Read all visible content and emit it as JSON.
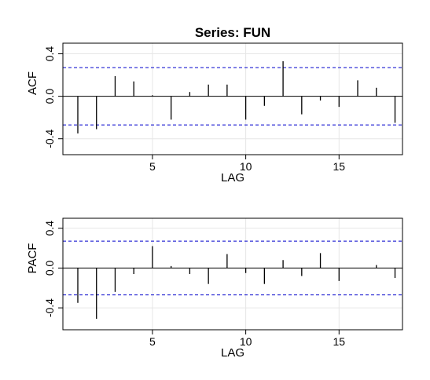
{
  "chart_data": [
    {
      "type": "bar",
      "title": "Series:  FUN",
      "xlabel": "LAG",
      "ylabel": "ACF",
      "xlim": [
        0.2,
        18.4
      ],
      "ylim": [
        -0.55,
        0.5
      ],
      "x_ticks": [
        5,
        10,
        15
      ],
      "y_ticks": [
        -0.4,
        0.0,
        0.4
      ],
      "y_tick_labels": [
        "-0.4",
        "0.0",
        "0.4"
      ],
      "grid": true,
      "confidence_bound": 0.27,
      "colors": {
        "bars": "#000000",
        "confidence": "#0000cc",
        "grid": "#e6e6e6"
      },
      "series": [
        {
          "lags": [
            1,
            2,
            3,
            4,
            5,
            6,
            7,
            8,
            9,
            10,
            11,
            12,
            13,
            14,
            15,
            16,
            17,
            18
          ],
          "values": [
            -0.35,
            -0.31,
            0.19,
            0.14,
            0.01,
            -0.22,
            0.04,
            0.11,
            0.11,
            -0.22,
            -0.09,
            0.33,
            -0.17,
            -0.04,
            -0.1,
            0.15,
            0.08,
            -0.25
          ]
        }
      ]
    },
    {
      "type": "bar",
      "title": "",
      "xlabel": "LAG",
      "ylabel": "PACF",
      "xlim": [
        0.2,
        18.4
      ],
      "ylim": [
        -0.62,
        0.5
      ],
      "x_ticks": [
        5,
        10,
        15
      ],
      "y_ticks": [
        -0.4,
        0.0,
        0.4
      ],
      "y_tick_labels": [
        "-0.4",
        "0.0",
        "0.4"
      ],
      "grid": true,
      "confidence_bound": 0.27,
      "colors": {
        "bars": "#000000",
        "confidence": "#0000cc",
        "grid": "#e6e6e6"
      },
      "series": [
        {
          "lags": [
            1,
            2,
            3,
            4,
            5,
            6,
            7,
            8,
            9,
            10,
            11,
            12,
            13,
            14,
            15,
            16,
            17,
            18
          ],
          "values": [
            -0.35,
            -0.51,
            -0.24,
            -0.06,
            0.22,
            0.02,
            -0.06,
            -0.16,
            0.14,
            -0.05,
            -0.16,
            0.08,
            -0.08,
            0.15,
            -0.13,
            0.0,
            0.03,
            -0.1
          ]
        }
      ]
    }
  ]
}
